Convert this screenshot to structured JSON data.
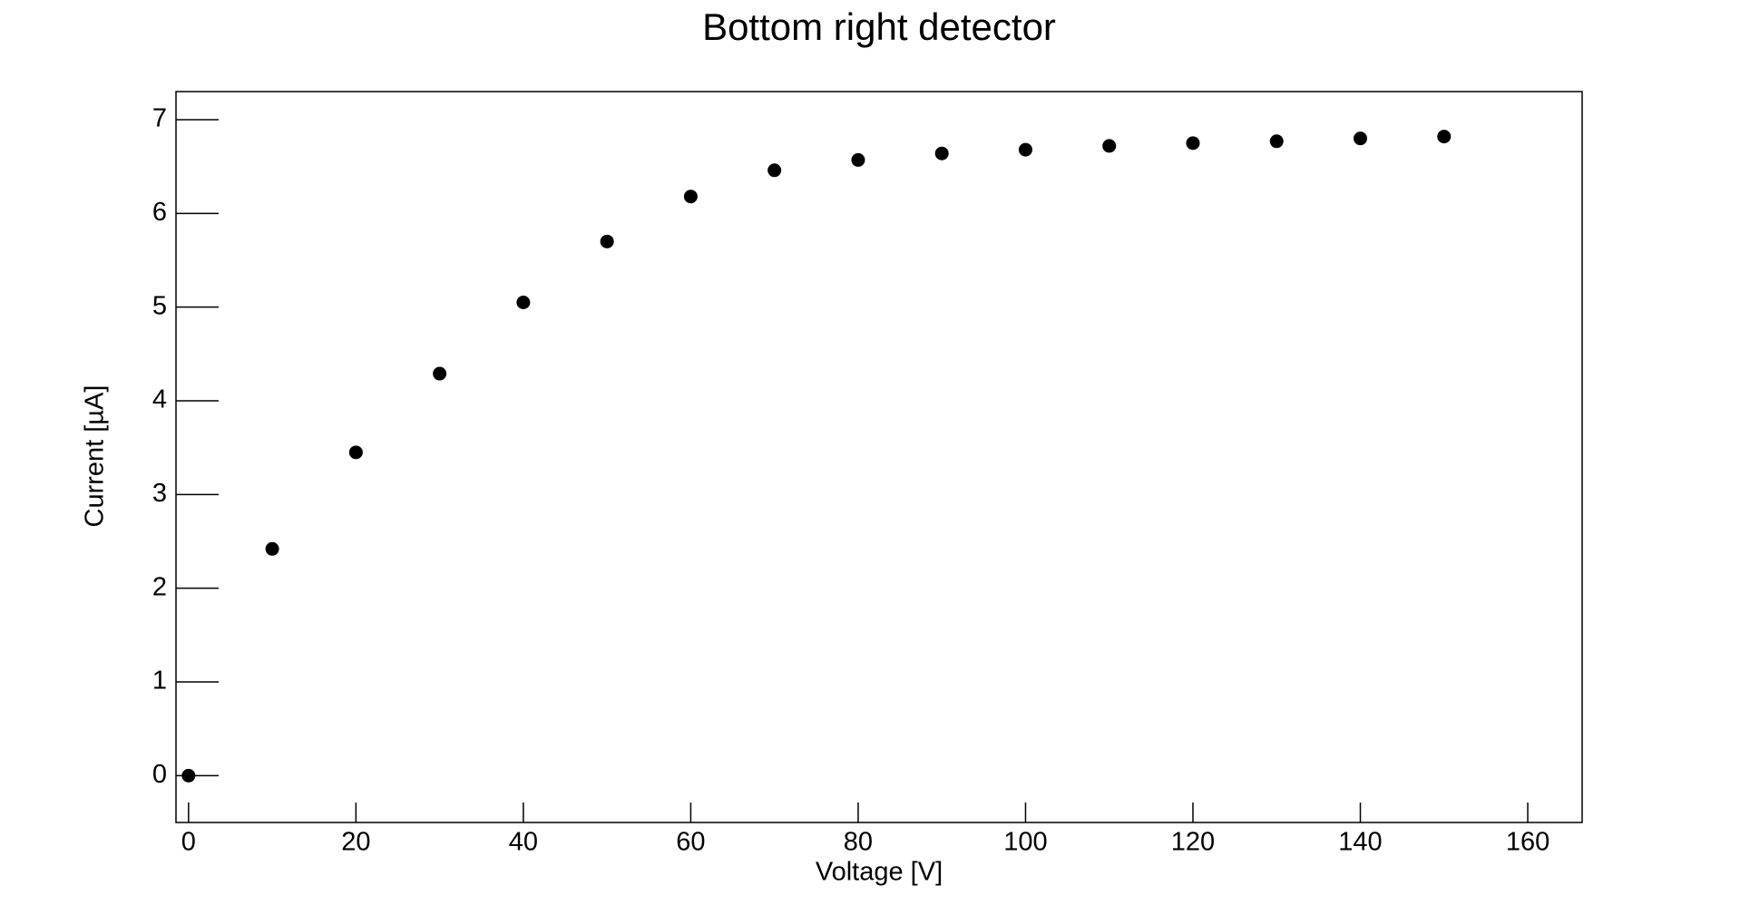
{
  "chart_data": {
    "type": "scatter",
    "title": "Bottom right detector",
    "x_label": "Voltage [V]",
    "y_label": "Current [µA]",
    "x": [
      0,
      10,
      20,
      30,
      40,
      50,
      60,
      70,
      80,
      90,
      100,
      110,
      120,
      130,
      140,
      150
    ],
    "series": [
      {
        "name": "Current",
        "color": "#000000",
        "values": [
          0,
          2.42,
          3.45,
          4.29,
          5.05,
          5.7,
          6.18,
          6.46,
          6.57,
          6.64,
          6.68,
          6.72,
          6.75,
          6.77,
          6.8,
          6.82
        ]
      }
    ],
    "xlim": [
      -1.5,
      166.5
    ],
    "xticks": [
      0,
      20,
      40,
      60,
      80,
      100,
      120,
      140,
      160
    ],
    "ylim": [
      -0.5,
      7.3
    ],
    "yticks": [
      0,
      1,
      2,
      3,
      4,
      5,
      6,
      7
    ],
    "grid": false
  }
}
